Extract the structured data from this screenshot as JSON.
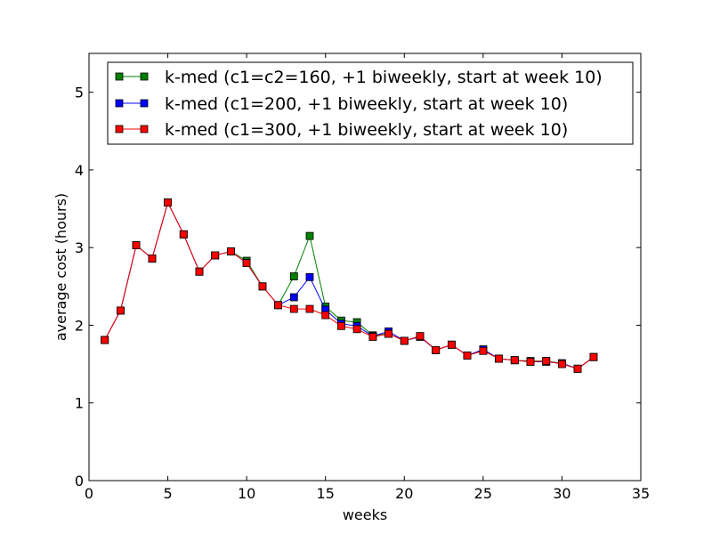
{
  "chart_data": {
    "type": "line",
    "title": "",
    "xlabel": "weeks",
    "ylabel": "average cost (hours)",
    "xlim": [
      0,
      35
    ],
    "ylim": [
      0,
      5.5
    ],
    "xticks": [
      0,
      5,
      10,
      15,
      20,
      25,
      30,
      35
    ],
    "yticks": [
      0,
      1,
      2,
      3,
      4,
      5
    ],
    "grid": false,
    "legend_position": "top-right",
    "marker": "square",
    "x": [
      1,
      2,
      3,
      4,
      5,
      6,
      7,
      8,
      9,
      10,
      11,
      12,
      13,
      14,
      15,
      16,
      17,
      18,
      19,
      20,
      21,
      22,
      23,
      24,
      25,
      26,
      27,
      28,
      29,
      30,
      31,
      32
    ],
    "series": [
      {
        "name": "k-med (c1=c2=160, +1 biweekly, start at week 10)",
        "color": "#008000",
        "values": [
          1.81,
          2.19,
          3.03,
          2.86,
          3.58,
          3.17,
          2.69,
          2.9,
          2.95,
          2.83,
          2.5,
          2.26,
          2.63,
          3.15,
          2.24,
          2.06,
          2.04,
          1.87,
          1.89,
          1.8,
          1.86,
          1.68,
          1.75,
          1.61,
          1.68,
          1.57,
          1.55,
          1.54,
          1.54,
          1.51,
          1.44,
          1.59
        ]
      },
      {
        "name": "k-med (c1=200, +1 biweekly, start at week 10)",
        "color": "#0000ff",
        "values": [
          1.81,
          2.19,
          3.03,
          2.86,
          3.58,
          3.17,
          2.69,
          2.9,
          2.95,
          2.8,
          2.5,
          2.26,
          2.36,
          2.62,
          2.2,
          2.02,
          1.99,
          1.86,
          1.92,
          1.8,
          1.85,
          1.68,
          1.75,
          1.61,
          1.69,
          1.57,
          1.55,
          1.53,
          1.53,
          1.51,
          1.44,
          1.59
        ]
      },
      {
        "name": "k-med (c1=300, +1 biweekly, start at week 10)",
        "color": "#ff0000",
        "values": [
          1.81,
          2.19,
          3.03,
          2.86,
          3.58,
          3.17,
          2.69,
          2.9,
          2.95,
          2.8,
          2.5,
          2.26,
          2.21,
          2.21,
          2.13,
          1.99,
          1.95,
          1.85,
          1.89,
          1.8,
          1.86,
          1.68,
          1.75,
          1.61,
          1.67,
          1.57,
          1.55,
          1.53,
          1.54,
          1.5,
          1.44,
          1.59
        ]
      }
    ]
  }
}
